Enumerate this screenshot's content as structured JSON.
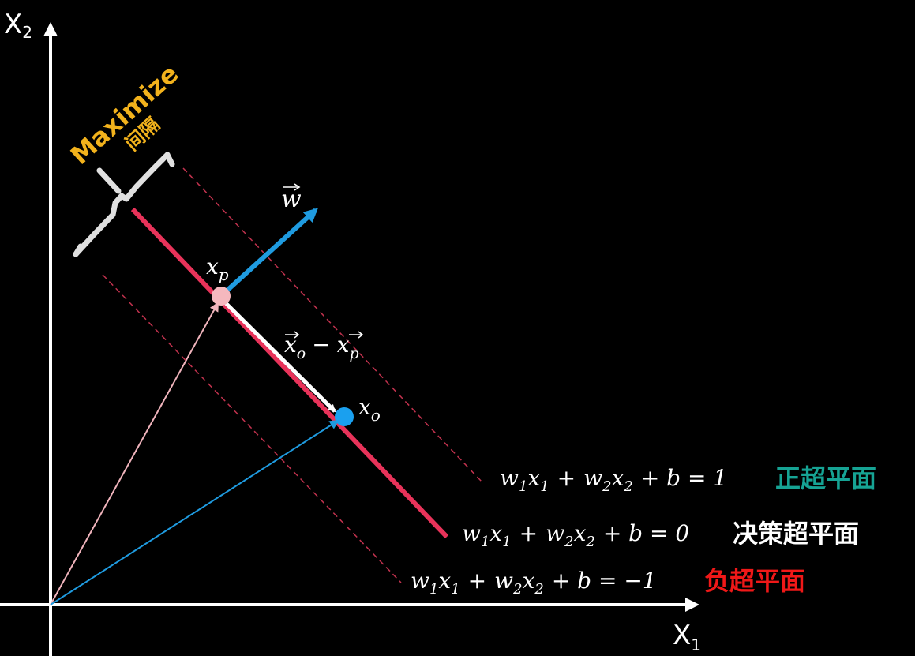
{
  "axes": {
    "x_label": "X",
    "x_sub": "1",
    "y_label": "X",
    "y_sub": "2"
  },
  "margin": {
    "maximize": "Maximize",
    "gap": "间隔"
  },
  "vectors": {
    "w_label": "w",
    "xp_label": "x",
    "xp_sub": "p",
    "xo_label": "x",
    "xo_sub": "o",
    "diff_main": "x",
    "diff_sub_o": "o",
    "diff_minus": "−",
    "diff_second": "x",
    "diff_sub_p": "p"
  },
  "hyperplanes": {
    "positive": {
      "w1": "w",
      "s1": "1",
      "x1": "x",
      "s2": "1",
      "plus1": "+",
      "w2": "w",
      "s3": "2",
      "x2": "x",
      "s4": "2",
      "rest": "+ b = 1",
      "name": "正超平面"
    },
    "decision": {
      "w1": "w",
      "s1": "1",
      "x1": "x",
      "s2": "1",
      "plus1": "+",
      "w2": "w",
      "s3": "2",
      "x2": "x",
      "s4": "2",
      "rest": "+ b = 0",
      "name": "决策超平面"
    },
    "negative": {
      "w1": "w",
      "s1": "1",
      "x1": "x",
      "s2": "1",
      "plus1": "+",
      "w2": "w",
      "s3": "2",
      "x2": "x",
      "s4": "2",
      "rest": "+ b = −1",
      "name": "负超平面"
    }
  },
  "colors": {
    "background": "#000000",
    "axis": "#ffffff",
    "decision_line": "#e8335a",
    "margin_line": "#c2324e",
    "w_vector": "#1f9be0",
    "xp_vector": "#f0b4bc",
    "xo_vector": "#1f9be0",
    "xp_point": "#f5b8be",
    "xo_point": "#1aa0ef",
    "positive_name": "#16a394",
    "decision_name": "#ffffff",
    "negative_name": "#f01818",
    "maximize": "#f2b21c",
    "brace": "#e0e0e0"
  }
}
